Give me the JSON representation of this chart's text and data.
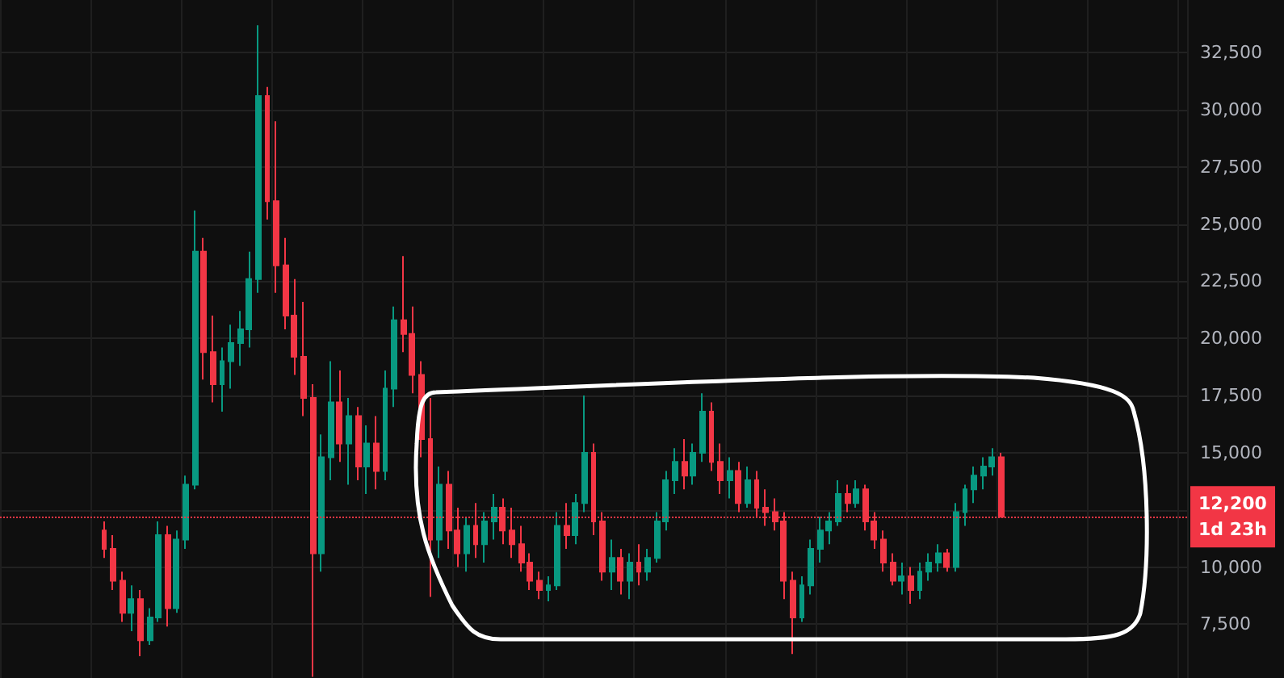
{
  "chart_data": {
    "type": "candlestick",
    "categories": [
      null,
      null,
      null,
      null,
      null,
      null,
      null,
      null,
      null,
      null,
      null,
      null,
      null,
      null,
      null,
      null,
      null,
      null,
      null,
      null,
      null,
      null,
      null,
      null,
      null,
      null,
      null,
      null,
      null,
      null,
      null,
      null,
      null,
      null,
      null,
      null,
      null,
      null,
      null,
      null,
      null,
      null,
      null,
      null,
      null,
      null,
      null,
      null,
      null,
      null,
      null,
      null,
      null,
      null,
      null,
      null,
      null,
      null,
      null,
      null,
      null,
      null,
      null,
      null,
      null,
      null,
      null,
      null,
      null,
      null,
      null,
      null,
      null,
      null,
      null,
      null,
      null,
      null,
      null,
      null,
      null,
      null,
      null,
      null,
      null,
      null,
      null,
      null,
      null,
      null,
      null,
      null,
      null,
      null,
      null,
      null,
      null,
      null,
      null,
      null,
      null,
      null,
      null,
      null,
      null,
      null,
      null,
      null,
      null,
      null,
      null,
      null,
      null,
      null,
      null,
      null,
      null,
      null,
      null,
      null,
      null,
      null,
      null,
      null,
      null,
      null,
      null,
      null,
      null,
      null,
      null
    ],
    "ohlc": [
      null,
      null,
      null,
      null,
      null,
      null,
      null,
      null,
      null,
      null,
      null,
      [
        11600,
        12000,
        10400,
        10800
      ],
      [
        10800,
        11400,
        9000,
        9400
      ],
      [
        9400,
        9800,
        7600,
        8000
      ],
      [
        8000,
        9200,
        7200,
        8600
      ],
      [
        8600,
        9000,
        6100,
        6800
      ],
      [
        6800,
        8200,
        6600,
        7800
      ],
      [
        7800,
        12000,
        7600,
        11400
      ],
      [
        11400,
        11800,
        7400,
        8200
      ],
      [
        8200,
        11600,
        8000,
        11200
      ],
      [
        11200,
        14000,
        10800,
        13600
      ],
      [
        13600,
        25600,
        13400,
        23800
      ],
      [
        23800,
        24400,
        18200,
        19400
      ],
      [
        19400,
        21000,
        17200,
        18000
      ],
      [
        18000,
        19600,
        16800,
        19000
      ],
      [
        19000,
        20600,
        17800,
        19800
      ],
      [
        19800,
        21200,
        18800,
        20400
      ],
      [
        20400,
        23800,
        19600,
        22600
      ],
      [
        22600,
        33700,
        22000,
        30600
      ],
      [
        30600,
        31000,
        25200,
        26000
      ],
      [
        26000,
        29500,
        22000,
        23200
      ],
      [
        23200,
        24400,
        20400,
        21000
      ],
      [
        21000,
        22600,
        18400,
        19200
      ],
      [
        19200,
        21600,
        16600,
        17400
      ],
      [
        17400,
        18000,
        5200,
        10600
      ],
      [
        10600,
        15800,
        9800,
        14800
      ],
      [
        14800,
        19000,
        13800,
        17200
      ],
      [
        17200,
        18600,
        14600,
        15400
      ],
      [
        15400,
        17400,
        13600,
        16600
      ],
      [
        16600,
        17000,
        13800,
        14400
      ],
      [
        14400,
        16200,
        13200,
        15400
      ],
      [
        15400,
        16600,
        13400,
        14200
      ],
      [
        14200,
        18600,
        13800,
        17800
      ],
      [
        17800,
        21400,
        17000,
        20800
      ],
      [
        20800,
        23600,
        19400,
        20200
      ],
      [
        20200,
        21400,
        17600,
        18400
      ],
      [
        18400,
        19000,
        14800,
        15600
      ],
      [
        15600,
        17400,
        8700,
        11200
      ],
      [
        11200,
        14400,
        10400,
        13600
      ],
      [
        13600,
        14200,
        10800,
        11600
      ],
      [
        11600,
        12600,
        10000,
        10600
      ],
      [
        10600,
        12200,
        9800,
        11800
      ],
      [
        11800,
        12800,
        10400,
        11000
      ],
      [
        11000,
        12400,
        10200,
        12000
      ],
      [
        12000,
        13200,
        11200,
        12600
      ],
      [
        12600,
        13000,
        11000,
        11600
      ],
      [
        11600,
        12600,
        10400,
        11000
      ],
      [
        11000,
        11800,
        9800,
        10200
      ],
      [
        10200,
        10600,
        9000,
        9400
      ],
      [
        9400,
        9800,
        8600,
        9000
      ],
      [
        9000,
        9600,
        8500,
        9200
      ],
      [
        9200,
        12400,
        9000,
        11800
      ],
      [
        11800,
        12800,
        10800,
        11400
      ],
      [
        11400,
        13200,
        11000,
        12800
      ],
      [
        12800,
        17500,
        12400,
        15000
      ],
      [
        15000,
        15400,
        11400,
        12000
      ],
      [
        12000,
        12400,
        9400,
        9800
      ],
      [
        9800,
        11200,
        9000,
        10400
      ],
      [
        10400,
        10800,
        8800,
        9400
      ],
      [
        9400,
        10600,
        8600,
        10200
      ],
      [
        10200,
        11000,
        9200,
        9800
      ],
      [
        9800,
        10800,
        9400,
        10400
      ],
      [
        10400,
        12400,
        10200,
        12000
      ],
      [
        12000,
        14200,
        11600,
        13800
      ],
      [
        13800,
        15200,
        13200,
        14600
      ],
      [
        14600,
        15600,
        13400,
        14000
      ],
      [
        14000,
        15400,
        13600,
        15000
      ],
      [
        15000,
        17600,
        14600,
        16800
      ],
      [
        16800,
        17200,
        14200,
        14600
      ],
      [
        14600,
        15400,
        13200,
        13800
      ],
      [
        13800,
        14800,
        13000,
        14200
      ],
      [
        14200,
        14600,
        12400,
        12800
      ],
      [
        12800,
        14400,
        12600,
        13800
      ],
      [
        13800,
        14200,
        12200,
        12600
      ],
      [
        12600,
        13400,
        11800,
        12400
      ],
      [
        12400,
        13000,
        11600,
        12000
      ],
      [
        12000,
        12400,
        8600,
        9400
      ],
      [
        9400,
        9800,
        6200,
        7800
      ],
      [
        7800,
        9600,
        7600,
        9200
      ],
      [
        9200,
        11200,
        8800,
        10800
      ],
      [
        10800,
        12200,
        10200,
        11600
      ],
      [
        11600,
        12400,
        11000,
        12000
      ],
      [
        12000,
        13800,
        11800,
        13200
      ],
      [
        13200,
        13600,
        12400,
        12800
      ],
      [
        12800,
        13800,
        12600,
        13400
      ],
      [
        13400,
        13600,
        11600,
        12000
      ],
      [
        12000,
        12400,
        10800,
        11200
      ],
      [
        11200,
        11600,
        9800,
        10200
      ],
      [
        10200,
        10600,
        9200,
        9400
      ],
      [
        9400,
        10200,
        8800,
        9600
      ],
      [
        9600,
        10000,
        8400,
        9000
      ],
      [
        9000,
        10200,
        8600,
        9800
      ],
      [
        9800,
        10600,
        9400,
        10200
      ],
      [
        10200,
        11000,
        9800,
        10600
      ],
      [
        10600,
        10800,
        9800,
        10000
      ],
      [
        10000,
        12800,
        9800,
        12400
      ],
      [
        12400,
        13600,
        11800,
        13400
      ],
      [
        13400,
        14400,
        12800,
        14000
      ],
      [
        14000,
        14800,
        13400,
        14400
      ],
      [
        14400,
        15200,
        14000,
        14800
      ],
      [
        14800,
        15000,
        12200,
        12200
      ],
      null,
      null,
      null,
      null,
      null,
      null,
      null,
      null,
      null,
      null,
      null,
      null,
      null,
      null,
      null,
      null,
      null,
      null,
      null,
      null
    ],
    "colors": [
      null,
      null,
      null,
      null,
      null,
      null,
      null,
      null,
      null,
      null,
      null,
      "#f23645",
      "#f23645",
      "#f23645",
      "#089981",
      "#f23645",
      "#089981",
      "#089981",
      "#f23645",
      "#089981",
      "#089981",
      "#089981",
      "#f23645",
      "#f23645",
      "#089981",
      "#089981",
      "#089981",
      "#089981",
      "#089981",
      "#f23645",
      "#f23645",
      "#f23645",
      "#f23645",
      "#f23645",
      "#f23645",
      "#089981",
      "#089981",
      "#f23645",
      "#089981",
      "#f23645",
      "#089981",
      "#f23645",
      "#089981",
      "#089981",
      "#f23645",
      "#f23645",
      "#f23645",
      "#f23645",
      "#089981",
      "#f23645",
      "#f23645",
      "#089981",
      "#f23645",
      "#089981",
      "#089981",
      "#f23645",
      "#f23645",
      "#f23645",
      "#f23645",
      "#f23645",
      "#089981",
      "#089981",
      "#f23645",
      "#089981",
      "#089981",
      "#f23645",
      "#f23645",
      "#089981",
      "#f23645",
      "#089981",
      "#f23645",
      "#089981",
      "#089981",
      "#089981",
      "#089981",
      "#f23645",
      "#089981",
      "#089981",
      "#f23645",
      "#f23645",
      "#089981",
      "#f23645",
      "#089981",
      "#f23645",
      "#f23645",
      "#f23645",
      "#f23645",
      "#f23645",
      "#089981",
      "#089981",
      "#089981",
      "#089981",
      "#089981",
      "#f23645",
      "#089981",
      "#f23645",
      "#f23645",
      "#f23645",
      "#f23645",
      "#089981",
      "#f23645",
      "#089981",
      "#089981",
      "#089981",
      "#f23645",
      "#089981",
      "#089981",
      "#089981",
      "#089981",
      "#089981",
      "#f23645",
      null,
      null,
      null,
      null,
      null,
      null,
      null,
      null,
      null,
      null,
      null,
      null,
      null,
      null,
      null,
      null,
      null,
      null,
      null,
      null
    ],
    "ylim": [
      5150,
      34800
    ],
    "yticks": [
      {
        "value": 7500,
        "label": "7,500"
      },
      {
        "value": 10000,
        "label": "10,000"
      },
      {
        "value": 12500,
        "label": null
      },
      {
        "value": 15000,
        "label": "15,000"
      },
      {
        "value": 17500,
        "label": "17,500"
      },
      {
        "value": 20000,
        "label": "20,000"
      },
      {
        "value": 22500,
        "label": "22,500"
      },
      {
        "value": 25000,
        "label": "25,000"
      },
      {
        "value": 27500,
        "label": "27,500"
      },
      {
        "value": 30000,
        "label": "30,000"
      },
      {
        "value": 32500,
        "label": "32,500"
      }
    ],
    "tick_labels": "y",
    "grid": true,
    "ref_lines": [
      {
        "axis": "y",
        "value": 12200,
        "label": "12,200",
        "color": "#f23645",
        "line_style": "dotted"
      }
    ],
    "annotations": [
      "1d 23h"
    ]
  }
}
